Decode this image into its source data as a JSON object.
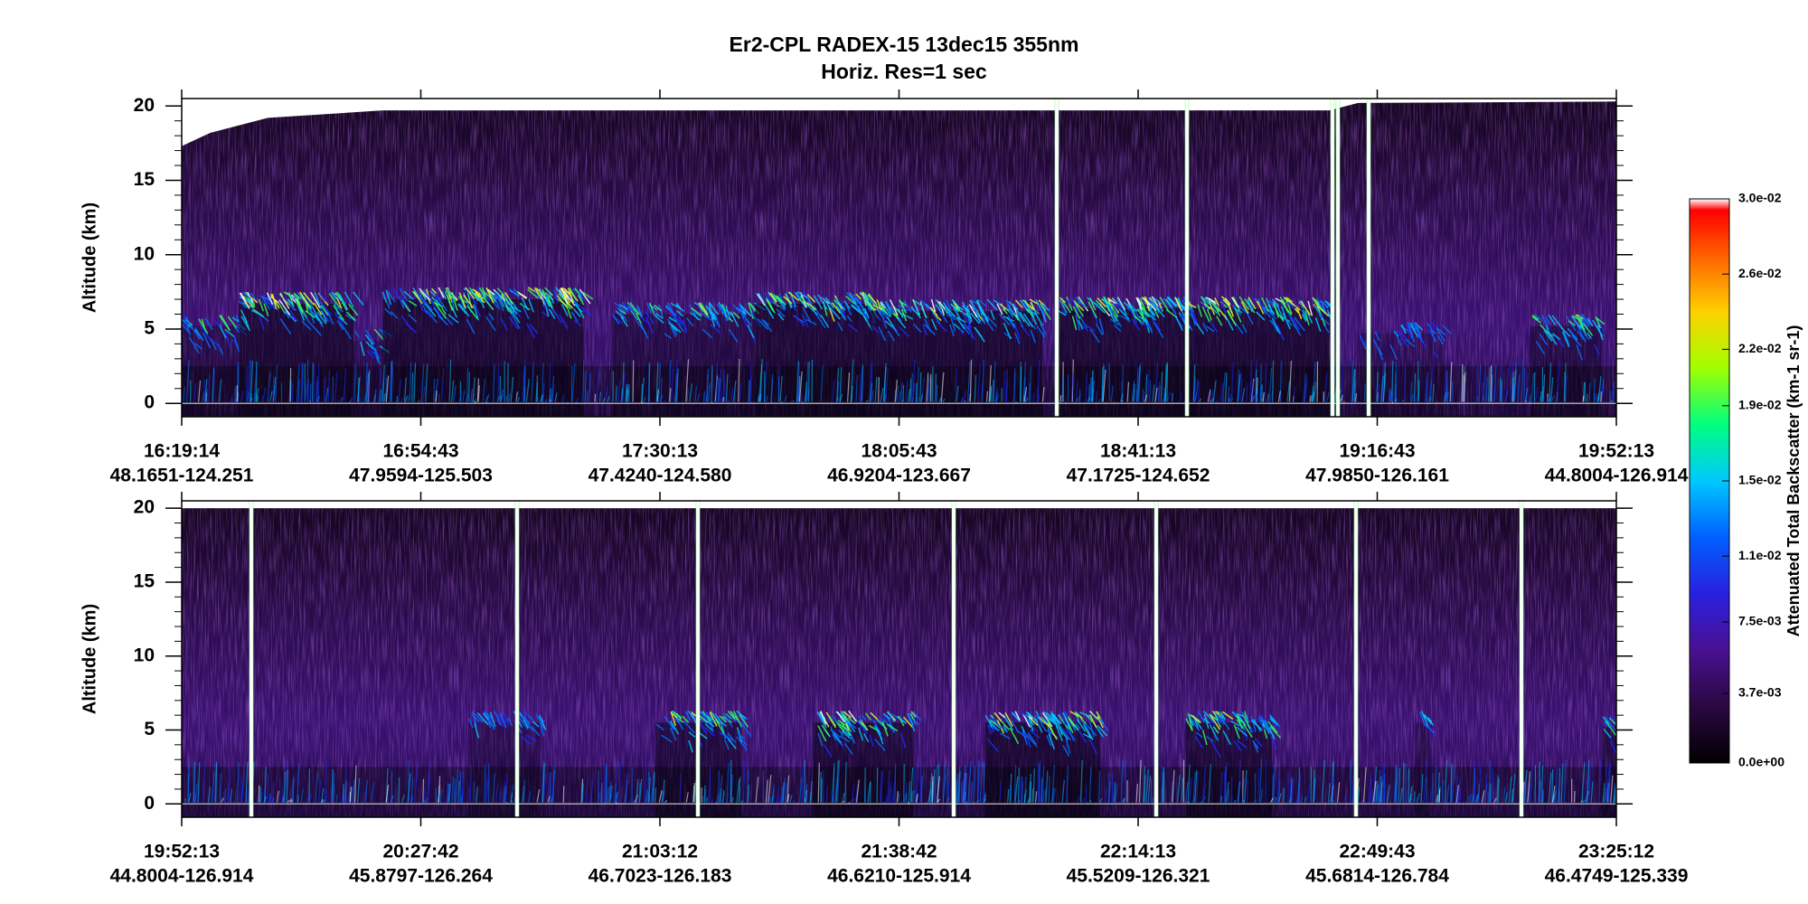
{
  "chart_data": [
    {
      "type": "curtain",
      "title": "Er2-CPL  RADEX-15  13dec15  355nm",
      "subtitle": "Horiz. Res=1 sec",
      "ylabel": "Altitude (km)",
      "ylim": [
        -0.9,
        20.5
      ],
      "yticks": [
        0,
        5,
        10,
        15,
        20
      ],
      "times": [
        "16:19:14",
        "16:54:43",
        "17:30:13",
        "18:05:43",
        "18:41:13",
        "19:16:43",
        "19:52:13"
      ],
      "locations": [
        "48.1651-124.251",
        "47.9594-125.503",
        "47.4240-124.580",
        "46.9204-123.667",
        "47.1725-124.652",
        "47.9850-126.161",
        "44.8004-126.914"
      ],
      "colorbar": {
        "label": "Attenuated Total Backscatter (km-1 sr-1)",
        "lim": [
          0,
          0.03
        ],
        "ticks": [
          {
            "value": 0,
            "label": "0.0e+00"
          },
          {
            "value": 0.0037,
            "label": "3.7e-03"
          },
          {
            "value": 0.0075,
            "label": "7.5e-03"
          },
          {
            "value": 0.011,
            "label": "1.1e-02"
          },
          {
            "value": 0.015,
            "label": "1.5e-02"
          },
          {
            "value": 0.019,
            "label": "1.9e-02"
          },
          {
            "value": 0.022,
            "label": "2.2e-02"
          },
          {
            "value": 0.026,
            "label": "2.6e-02"
          },
          {
            "value": 0.03,
            "label": "3.0e-02"
          }
        ]
      }
    },
    {
      "type": "curtain",
      "ylabel": "Altitude (km)",
      "ylim": [
        -0.9,
        20.5
      ],
      "yticks": [
        0,
        5,
        10,
        15,
        20
      ],
      "times": [
        "19:52:13",
        "20:27:42",
        "21:03:12",
        "21:38:42",
        "22:14:13",
        "22:49:43",
        "23:25:12"
      ],
      "locations": [
        "44.8004-126.914",
        "45.8797-126.264",
        "46.7023-126.183",
        "46.6210-125.914",
        "45.5209-126.321",
        "45.6814-126.784",
        "46.4749-125.339"
      ]
    }
  ]
}
